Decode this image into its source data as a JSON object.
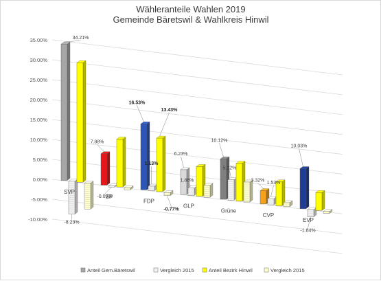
{
  "chart_data": {
    "type": "bar",
    "title": "Wähleranteile Wahlen 2019",
    "subtitle": "Gemeinde Bäretswil & Wahlkreis Hinwil",
    "categories": [
      "SVP",
      "SP",
      "FDP",
      "GLP",
      "Grüne",
      "CVP",
      "EVP"
    ],
    "series": [
      {
        "name": "Anteil Gem.Bäretswil",
        "values": [
          34.21,
          7.88,
          16.53,
          6.23,
          10.12,
          3.32,
          10.03
        ],
        "colors": [
          "#a6a6a6",
          "#e8161b",
          "#2c55b8",
          "#d9d9d9",
          "#7f7f7f",
          "#f7a11a",
          "#1f3d96"
        ]
      },
      {
        "name": "Vergleich 2015",
        "values": [
          -8.23,
          -0.09,
          1.13,
          1.86,
          5.12,
          1.53,
          -1.84
        ],
        "color": "#f2f2f2"
      },
      {
        "name": "Anteil Bezirk Hinwil",
        "values": [
          30.0,
          12.0,
          13.43,
          7.5,
          9.5,
          6.0,
          4.5
        ],
        "color": "#ffff00"
      },
      {
        "name": "Vergleich 2015",
        "values": [
          -6.5,
          -0.5,
          -0.77,
          3.0,
          5.0,
          1.0,
          -0.5
        ],
        "color": "#ffffcc"
      }
    ],
    "data_labels": [
      {
        "category": "SVP",
        "series": 0,
        "text": "34.21%",
        "bold": false
      },
      {
        "category": "SVP",
        "series": 1,
        "text": "-8.23%",
        "bold": false
      },
      {
        "category": "SP",
        "series": 0,
        "text": "7.88%",
        "bold": false
      },
      {
        "category": "SP",
        "series": 1,
        "text": "-0.09%",
        "bold": false
      },
      {
        "category": "FDP",
        "series": 0,
        "text": "16.53%",
        "bold": true
      },
      {
        "category": "FDP",
        "series": 1,
        "text": "1.13%",
        "bold": true
      },
      {
        "category": "FDP",
        "series": 2,
        "text": "13.43%",
        "bold": true
      },
      {
        "category": "FDP",
        "series": 3,
        "text": "-0.77%",
        "bold": true
      },
      {
        "category": "GLP",
        "series": 0,
        "text": "6.23%",
        "bold": false
      },
      {
        "category": "GLP",
        "series": 1,
        "text": "1.86%",
        "bold": false
      },
      {
        "category": "Grüne",
        "series": 0,
        "text": "10.12%",
        "bold": false
      },
      {
        "category": "Grüne",
        "series": 1,
        "text": "5.12%",
        "bold": false
      },
      {
        "category": "CVP",
        "series": 0,
        "text": "3.32%",
        "bold": false
      },
      {
        "category": "CVP",
        "series": 1,
        "text": "1.53%",
        "bold": false
      },
      {
        "category": "EVP",
        "series": 0,
        "text": "10.03%",
        "bold": false
      },
      {
        "category": "EVP",
        "series": 1,
        "text": "-1.84%",
        "bold": false
      }
    ],
    "y_ticks": [
      "35.00%",
      "30.00%",
      "25.00%",
      "20.00%",
      "15.00%",
      "10.00%",
      "5.00%",
      "0.00%",
      "-5.00%",
      "-10.00%"
    ],
    "ylim": [
      -10,
      35
    ],
    "grid": true,
    "legend_position": "bottom",
    "view": "3d"
  }
}
